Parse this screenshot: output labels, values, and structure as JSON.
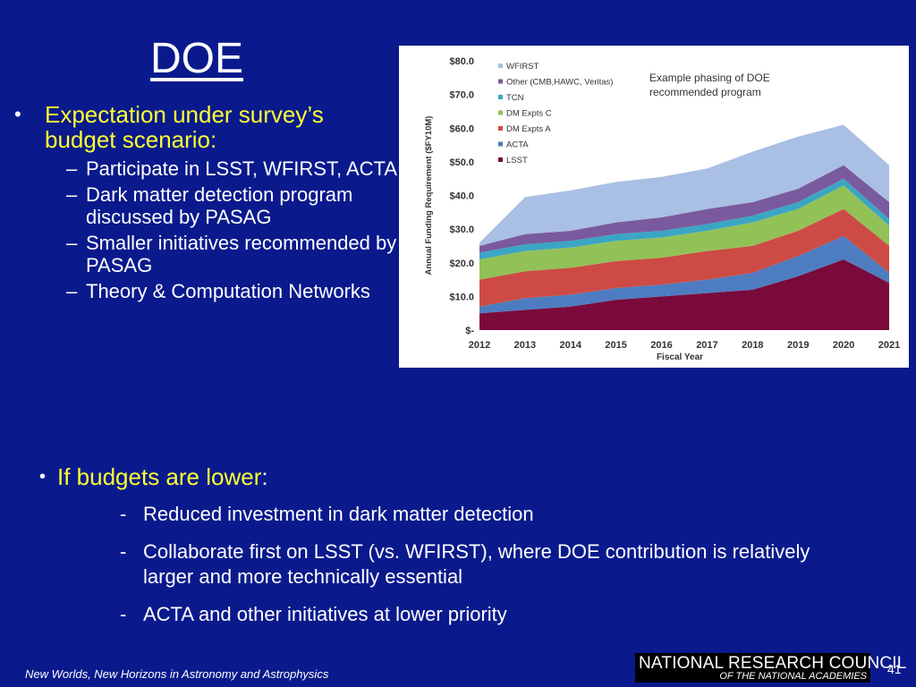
{
  "slide": {
    "title": "DOE",
    "bullet_main": "Expectation under survey’s budget scenario:",
    "sub_items": [
      "Participate in LSST, WFIRST, ACTA",
      "Dark matter detection program discussed by PASAG",
      "Smaller initiatives recommended by PASAG",
      "Theory & Computation Networks"
    ],
    "lower_head_highlight": "If budgets are lower",
    "lower_head_colon": ":",
    "lower_items": [
      "Reduced investment in dark matter detection",
      "Collaborate first on LSST (vs. WFIRST), where DOE contribution is relatively larger and more technically essential",
      "ACTA and other initiatives at lower priority"
    ],
    "footer": "New Worlds, New Horizons in Astronomy and Astrophysics",
    "logo_line1": "NATIONAL RESEARCH COUNCIL",
    "logo_line2": "OF THE NATIONAL ACADEMIES",
    "page_number": "41",
    "bullet_glyph": "•",
    "dash_glyph": "–",
    "hyphen_glyph": "-"
  },
  "chart_data": {
    "type": "area",
    "stacked": true,
    "annotation": "Example phasing of DOE recommended program",
    "xlabel": "Fiscal Year",
    "ylabel": "Annual Funding Requirement ($FY10M)",
    "ylim": [
      0,
      80
    ],
    "yticks": [
      "$-",
      "$10.0",
      "$20.0",
      "$30.0",
      "$40.0",
      "$50.0",
      "$60.0",
      "$70.0",
      "$80.0"
    ],
    "x": [
      "2012",
      "2013",
      "2014",
      "2015",
      "2016",
      "2017",
      "2018",
      "2019",
      "2020",
      "2021"
    ],
    "legend_position": "top-left",
    "series": [
      {
        "name": "LSST",
        "color": "#7a0a3c",
        "values": [
          5,
          6,
          7,
          9,
          10,
          11,
          12,
          16,
          21,
          14
        ]
      },
      {
        "name": "ACTA",
        "color": "#4d7cc0",
        "values": [
          2,
          3.5,
          3.5,
          3.5,
          3.5,
          4,
          5,
          6,
          7,
          3
        ]
      },
      {
        "name": "DM Expts A",
        "color": "#cd4b44",
        "values": [
          8,
          8,
          8,
          8,
          8,
          8.5,
          8,
          7.5,
          8,
          8
        ]
      },
      {
        "name": "DM Expts C",
        "color": "#92c158",
        "values": [
          6,
          6,
          6,
          6,
          6,
          6,
          7,
          6.5,
          7,
          6
        ]
      },
      {
        "name": "TCN",
        "color": "#3ba6c4",
        "values": [
          2,
          2,
          2,
          2,
          2,
          2,
          2,
          2,
          2,
          2
        ]
      },
      {
        "name": "Other (CMB,HAWC, Veritas)",
        "color": "#7a5a9e",
        "values": [
          2,
          3,
          3,
          3.5,
          4,
          4.5,
          4,
          4,
          4,
          5
        ]
      },
      {
        "name": "WFIRST",
        "color": "#a9bfe3",
        "values": [
          1,
          11,
          12,
          12,
          12,
          12,
          15,
          15.5,
          12,
          11
        ]
      }
    ]
  }
}
